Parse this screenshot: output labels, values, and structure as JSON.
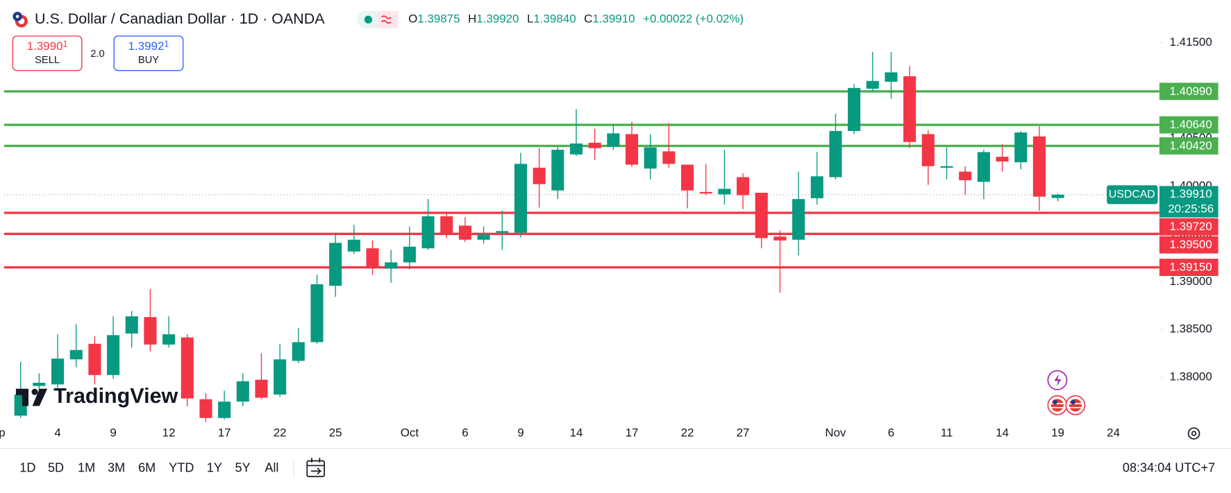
{
  "header": {
    "title": "U.S. Dollar / Canadian Dollar · 1D · OANDA",
    "ohlc": [
      {
        "key": "O",
        "text": "1.39875"
      },
      {
        "key": "H",
        "text": "1.39920"
      },
      {
        "key": "L",
        "text": "1.39840"
      },
      {
        "key": "C",
        "text": "1.39910"
      }
    ],
    "change": "+0.00022 (+0.02%)"
  },
  "trade": {
    "sell": {
      "price": "1.3990",
      "pip": "1",
      "label": "SELL"
    },
    "spread": "2.0",
    "buy": {
      "price": "1.3992",
      "pip": "1",
      "label": "BUY"
    }
  },
  "chart_data": {
    "type": "candlestick",
    "symbol": "USDCAD",
    "categories": [
      "p",
      null,
      null,
      "4",
      null,
      null,
      "9",
      null,
      null,
      "12",
      null,
      null,
      "17",
      null,
      null,
      "22",
      null,
      null,
      "25",
      null,
      null,
      null,
      "Oct",
      null,
      null,
      "6",
      null,
      null,
      "9",
      null,
      null,
      "14",
      null,
      null,
      "17",
      null,
      null,
      "22",
      null,
      null,
      "27",
      null,
      null,
      null,
      null,
      "Nov",
      null,
      null,
      "6",
      null,
      null,
      "11",
      null,
      null,
      "14",
      null,
      null,
      "19",
      null,
      null,
      "24"
    ],
    "open": [
      null,
      1.37599,
      1.3791,
      1.37926,
      1.38188,
      1.38351,
      1.38024,
      1.38458,
      1.3863,
      1.38343,
      1.38417,
      1.37771,
      1.37575,
      1.37746,
      1.37975,
      1.3782,
      1.38172,
      1.38368,
      1.38957,
      1.39316,
      1.39349,
      1.39137,
      1.39202,
      1.39349,
      1.39684,
      1.39586,
      1.39439,
      1.39513,
      1.39513,
      1.40192,
      1.39954,
      1.40331,
      1.40453,
      1.40412,
      1.40543,
      1.40183,
      1.40363,
      1.40224,
      1.39938,
      1.39913,
      1.40093,
      1.3993,
      1.39472,
      1.39439,
      1.39873,
      1.40093,
      1.40576,
      1.41018,
      1.41091,
      1.41148,
      1.40543,
      1.40192,
      1.40151,
      1.40044,
      1.40306,
      1.40249,
      1.40519,
      1.39875,
      null,
      null,
      null
    ],
    "high": [
      null,
      1.38163,
      1.38041,
      1.3845,
      1.38556,
      1.38433,
      1.38638,
      1.38695,
      1.38924,
      1.38638,
      1.3845,
      1.37836,
      1.37861,
      1.38041,
      1.38253,
      1.38351,
      1.38515,
      1.39071,
      1.39513,
      1.39595,
      1.39431,
      1.39333,
      1.39578,
      1.39864,
      1.39725,
      1.39676,
      1.39578,
      1.39742,
      1.40347,
      1.40396,
      1.40412,
      1.40805,
      1.406,
      1.40641,
      1.40674,
      1.40543,
      1.40658,
      1.40224,
      1.40232,
      1.4038,
      1.40134,
      1.3993,
      1.39537,
      1.40151,
      1.40355,
      1.40756,
      1.41067,
      1.41402,
      1.41402,
      1.41255,
      1.40584,
      1.40404,
      1.40208,
      1.4038,
      1.40437,
      1.40576,
      1.40625,
      1.3992,
      null,
      null,
      null
    ],
    "low": [
      null,
      1.37575,
      1.37861,
      1.37885,
      1.38106,
      1.37926,
      1.37983,
      1.38311,
      1.3827,
      1.38311,
      1.37697,
      1.37534,
      1.37558,
      1.37697,
      1.37771,
      1.37795,
      1.38147,
      1.38351,
      1.38842,
      1.39292,
      1.39071,
      1.38989,
      1.39128,
      1.39333,
      1.39456,
      1.39415,
      1.39398,
      1.39333,
      1.39464,
      1.39774,
      1.39864,
      1.40314,
      1.40273,
      1.4038,
      1.402,
      1.40069,
      1.40192,
      1.39766,
      1.39905,
      1.39807,
      1.39758,
      1.39349,
      1.38883,
      1.39276,
      1.39807,
      1.40069,
      1.40543,
      1.40985,
      1.40911,
      1.40396,
      1.40012,
      1.40069,
      1.39905,
      1.39864,
      1.40151,
      1.40175,
      1.39742,
      1.3984,
      null,
      null,
      null
    ],
    "close": [
      null,
      1.3782,
      1.37943,
      1.38196,
      1.38286,
      1.38024,
      1.38441,
      1.38638,
      1.38343,
      1.3845,
      1.37779,
      1.37575,
      1.37746,
      1.37959,
      1.37787,
      1.38188,
      1.38368,
      1.38973,
      1.39406,
      1.39439,
      1.39153,
      1.39202,
      1.39366,
      1.39684,
      1.39496,
      1.39439,
      1.39496,
      1.39529,
      1.40232,
      1.4002,
      1.4038,
      1.40445,
      1.40396,
      1.40551,
      1.40224,
      1.40404,
      1.40232,
      1.39954,
      1.39922,
      1.39971,
      1.39905,
      1.39456,
      1.39431,
      1.39864,
      1.40102,
      1.40576,
      1.41026,
      1.41099,
      1.41189,
      1.40461,
      1.40208,
      1.40208,
      1.40061,
      1.40355,
      1.40257,
      1.4056,
      1.39889,
      1.3991,
      null,
      null,
      null
    ],
    "up_color": "#089981",
    "down_color": "#f23645",
    "ylim": [
      1.3752,
      1.4188
    ],
    "yticks": [
      {
        "value": 1.415,
        "label": "1.41500"
      },
      {
        "value": 1.41,
        "label": "1.41000"
      },
      {
        "value": 1.405,
        "label": "1.40500"
      },
      {
        "value": 1.4,
        "label": "1.40000"
      },
      {
        "value": 1.395,
        "label": "1.39500"
      },
      {
        "value": 1.39,
        "label": "1.39000"
      },
      {
        "value": 1.385,
        "label": "1.38500"
      },
      {
        "value": 1.38,
        "label": "1.38000"
      }
    ],
    "levels": [
      {
        "value": 1.4099,
        "label": "1.40990",
        "color": "#4caf50"
      },
      {
        "value": 1.4064,
        "label": "1.40640",
        "color": "#4caf50"
      },
      {
        "value": 1.4042,
        "label": "1.40420",
        "color": "#4caf50"
      },
      {
        "value": 1.3972,
        "label": "1.39720",
        "color": "#f23645"
      },
      {
        "value": 1.395,
        "label": "1.39500",
        "color": "#f23645"
      },
      {
        "value": 1.3915,
        "label": "1.39150",
        "color": "#f23645"
      }
    ],
    "last_price": {
      "value": 1.3991,
      "label": "1.39910"
    },
    "countdown": "20:25:56",
    "watermark": "TradingView"
  },
  "toolbar": {
    "ranges": [
      "1D",
      "5D",
      "1M",
      "3M",
      "6M",
      "YTD",
      "1Y",
      "5Y",
      "All"
    ],
    "clock": "08:34:04 UTC+7"
  }
}
